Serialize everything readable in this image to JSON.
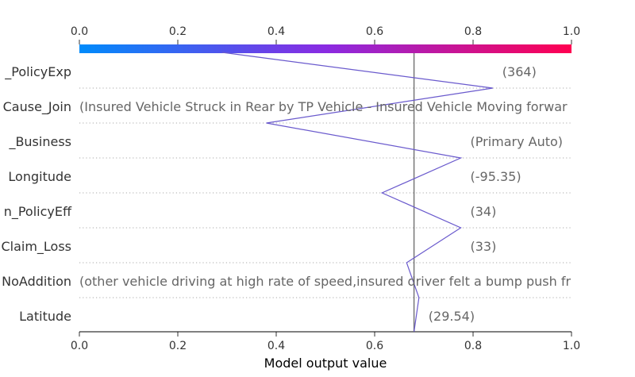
{
  "chart_data": {
    "type": "line",
    "xlabel": "Model output value",
    "xlim": [
      0.0,
      1.0
    ],
    "x_ticks": [
      "0.0",
      "0.2",
      "0.4",
      "0.6",
      "0.8",
      "1.0"
    ],
    "colorbar": {
      "stops": [
        "#008bfb",
        "#8a2be2",
        "#ff0051"
      ]
    },
    "line_color": "#6a5acd",
    "reference_value": 0.68,
    "features": [
      {
        "name": "_PolicyExp",
        "value_text": "(364)"
      },
      {
        "name": "Cause_Join",
        "value_text": "(Insured Vehicle Struck in Rear by TP Vehicle - Insured Vehicle Moving forwar"
      },
      {
        "name": "_Business",
        "value_text": "(Primary Auto)"
      },
      {
        "name": "Longitude",
        "value_text": "(-95.35)"
      },
      {
        "name": "n_PolicyEff",
        "value_text": "(34)"
      },
      {
        "name": "Claim_Loss",
        "value_text": "(33)"
      },
      {
        "name": "NoAddition",
        "value_text": "(other vehicle driving at high rate of speed,insured driver felt a bump push fr"
      },
      {
        "name": "Latitude",
        "value_text": "(29.54)"
      }
    ],
    "path": [
      0.29,
      0.84,
      0.38,
      0.775,
      0.615,
      0.775,
      0.665,
      0.69,
      0.68
    ]
  }
}
